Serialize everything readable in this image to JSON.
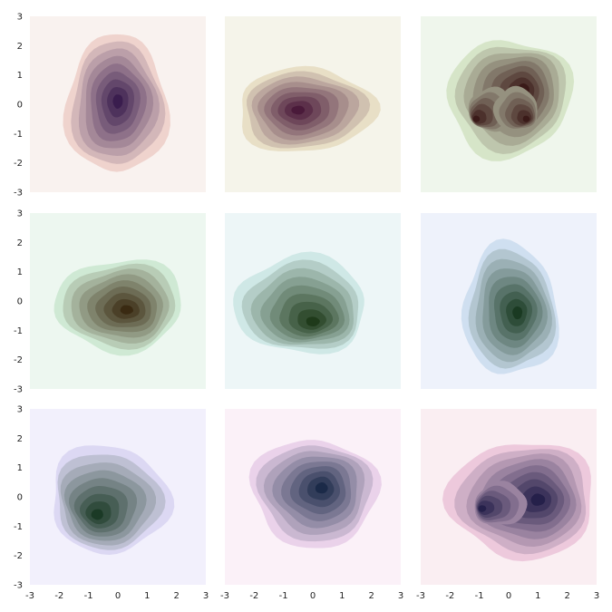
{
  "figure": {
    "layout": {
      "rows": 3,
      "cols": 3
    },
    "shared_x": true,
    "shared_y": true
  },
  "chart_data": [
    {
      "type": "contour",
      "xlim": [
        -3,
        3
      ],
      "ylim": [
        -3,
        3
      ],
      "x_ticks": [
        "-3",
        "-2",
        "-1",
        "0",
        "1",
        "2",
        "3"
      ],
      "y_ticks": [
        "-3",
        "-2",
        "-1",
        "0",
        "1",
        "2",
        "3"
      ],
      "grid": false,
      "colors": {
        "background": "#f9f2ef",
        "light": "#efd3cd",
        "dark": "#3a1d4e"
      },
      "peaks": [
        {
          "x": 0.0,
          "y": 0.1
        }
      ],
      "extent": {
        "x": [
          -1.9,
          1.8
        ],
        "y": [
          -3.0,
          2.9
        ]
      }
    },
    {
      "type": "contour",
      "xlim": [
        -3,
        3
      ],
      "ylim": [
        -3,
        3
      ],
      "x_ticks": [
        "-3",
        "-2",
        "-1",
        "0",
        "1",
        "2",
        "3"
      ],
      "y_ticks": [
        "-3",
        "-2",
        "-1",
        "0",
        "1",
        "2",
        "3"
      ],
      "grid": false,
      "colors": {
        "background": "#f5f4ea",
        "light": "#e8dfc6",
        "dark": "#4a1a3a"
      },
      "peaks": [
        {
          "x": -0.5,
          "y": -0.2
        }
      ],
      "extent": {
        "x": [
          -2.7,
          2.3
        ],
        "y": [
          -2.0,
          1.6
        ]
      }
    },
    {
      "type": "contour",
      "xlim": [
        -3,
        3
      ],
      "ylim": [
        -3,
        3
      ],
      "x_ticks": [
        "-3",
        "-2",
        "-1",
        "0",
        "1",
        "2",
        "3"
      ],
      "y_ticks": [
        "-3",
        "-2",
        "-1",
        "0",
        "1",
        "2",
        "3"
      ],
      "grid": false,
      "colors": {
        "background": "#eff6ec",
        "light": "#d6e5c8",
        "dark": "#3a1a18"
      },
      "peaks": [
        {
          "x": 0.5,
          "y": 0.5
        },
        {
          "x": -1.1,
          "y": -0.5
        },
        {
          "x": 0.6,
          "y": -0.5
        }
      ],
      "extent": {
        "x": [
          -2.4,
          2.2
        ],
        "y": [
          -2.3,
          2.6
        ]
      }
    },
    {
      "type": "contour",
      "xlim": [
        -3,
        3
      ],
      "ylim": [
        -3,
        3
      ],
      "x_ticks": [
        "-3",
        "-2",
        "-1",
        "0",
        "1",
        "2",
        "3"
      ],
      "y_ticks": [
        "-3",
        "-2",
        "-1",
        "0",
        "1",
        "2",
        "3"
      ],
      "grid": false,
      "colors": {
        "background": "#edf7f0",
        "light": "#cfe9d4",
        "dark": "#3a2a12"
      },
      "peaks": [
        {
          "x": 0.3,
          "y": -0.3
        }
      ],
      "extent": {
        "x": [
          -2.4,
          2.4
        ],
        "y": [
          -2.0,
          1.8
        ]
      }
    },
    {
      "type": "contour",
      "xlim": [
        -3,
        3
      ],
      "ylim": [
        -3,
        3
      ],
      "x_ticks": [
        "-3",
        "-2",
        "-1",
        "0",
        "1",
        "2",
        "3"
      ],
      "y_ticks": [
        "-3",
        "-2",
        "-1",
        "0",
        "1",
        "2",
        "3"
      ],
      "grid": false,
      "colors": {
        "background": "#edf6f7",
        "light": "#cfe8e6",
        "dark": "#1f3a1a"
      },
      "peaks": [
        {
          "x": 0.0,
          "y": -0.7
        }
      ],
      "extent": {
        "x": [
          -3.0,
          2.0
        ],
        "y": [
          -2.0,
          2.0
        ]
      }
    },
    {
      "type": "contour",
      "xlim": [
        -3,
        3
      ],
      "ylim": [
        -3,
        3
      ],
      "x_ticks": [
        "-3",
        "-2",
        "-1",
        "0",
        "1",
        "2",
        "3"
      ],
      "y_ticks": [
        "-3",
        "-2",
        "-1",
        "0",
        "1",
        "2",
        "3"
      ],
      "grid": false,
      "colors": {
        "background": "#eef2fb",
        "light": "#cfdff0",
        "dark": "#1a3a22"
      },
      "peaks": [
        {
          "x": 0.3,
          "y": -0.4
        }
      ],
      "extent": {
        "x": [
          -1.8,
          1.8
        ],
        "y": [
          -3.0,
          2.4
        ]
      }
    },
    {
      "type": "contour",
      "xlim": [
        -3,
        3
      ],
      "ylim": [
        -3,
        3
      ],
      "x_ticks": [
        "-3",
        "-2",
        "-1",
        "0",
        "1",
        "2",
        "3"
      ],
      "y_ticks": [
        "-3",
        "-2",
        "-1",
        "0",
        "1",
        "2",
        "3"
      ],
      "grid": false,
      "colors": {
        "background": "#f2f0fc",
        "light": "#dcd8f3",
        "dark": "#1b3a26"
      },
      "peaks": [
        {
          "x": -0.7,
          "y": -0.6
        }
      ],
      "extent": {
        "x": [
          -2.4,
          2.0
        ],
        "y": [
          -2.2,
          2.3
        ]
      }
    },
    {
      "type": "contour",
      "xlim": [
        -3,
        3
      ],
      "ylim": [
        -3,
        3
      ],
      "x_ticks": [
        "-3",
        "-2",
        "-1",
        "0",
        "1",
        "2",
        "3"
      ],
      "y_ticks": [
        "-3",
        "-2",
        "-1",
        "0",
        "1",
        "2",
        "3"
      ],
      "grid": false,
      "colors": {
        "background": "#fbf1f8",
        "light": "#ead2ea",
        "dark": "#1b2a48"
      },
      "peaks": [
        {
          "x": 0.3,
          "y": 0.3
        }
      ],
      "extent": {
        "x": [
          -2.3,
          2.3
        ],
        "y": [
          -2.2,
          2.4
        ]
      }
    },
    {
      "type": "contour",
      "xlim": [
        -3,
        3
      ],
      "ylim": [
        -3,
        3
      ],
      "x_ticks": [
        "-3",
        "-2",
        "-1",
        "0",
        "1",
        "2",
        "3"
      ],
      "y_ticks": [
        "-3",
        "-2",
        "-1",
        "0",
        "1",
        "2",
        "3"
      ],
      "grid": false,
      "colors": {
        "background": "#faeef2",
        "light": "#edc9dc",
        "dark": "#25204a"
      },
      "peaks": [
        {
          "x": 1.0,
          "y": -0.1
        },
        {
          "x": -0.9,
          "y": -0.4
        }
      ],
      "extent": {
        "x": [
          -2.3,
          3.0
        ],
        "y": [
          -2.6,
          2.4
        ]
      }
    }
  ]
}
